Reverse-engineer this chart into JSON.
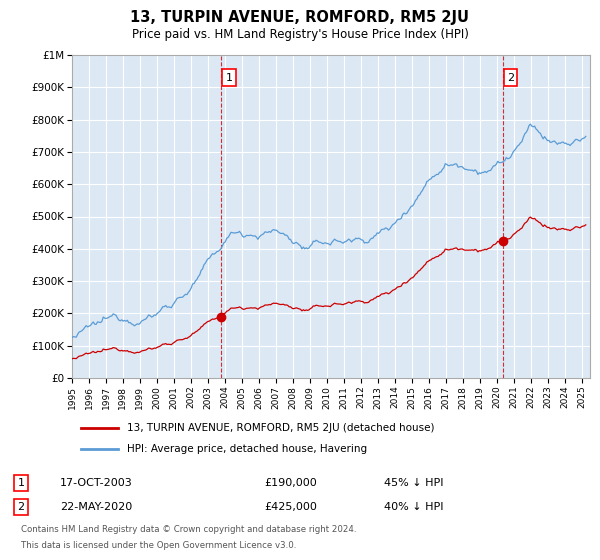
{
  "title": "13, TURPIN AVENUE, ROMFORD, RM5 2JU",
  "subtitle": "Price paid vs. HM Land Registry's House Price Index (HPI)",
  "title_fontsize": 10.5,
  "subtitle_fontsize": 8.5,
  "background_color": "#ffffff",
  "plot_bg_color": "#dce9f5",
  "grid_color": "#ffffff",
  "ylim": [
    0,
    1000000
  ],
  "xlim_start": 1995.0,
  "xlim_end": 2025.5,
  "yticks": [
    0,
    100000,
    200000,
    300000,
    400000,
    500000,
    600000,
    700000,
    800000,
    900000,
    1000000
  ],
  "ytick_labels": [
    "£0",
    "£100K",
    "£200K",
    "£300K",
    "£400K",
    "£500K",
    "£600K",
    "£700K",
    "£800K",
    "£900K",
    "£1M"
  ],
  "hpi_color": "#5b9bd5",
  "price_color": "#cc0000",
  "sale1_x": 2003.79,
  "sale1_y": 190000,
  "sale2_x": 2020.38,
  "sale2_y": 425000,
  "legend_line1": "13, TURPIN AVENUE, ROMFORD, RM5 2JU (detached house)",
  "legend_line2": "HPI: Average price, detached house, Havering",
  "annotation1_label": "1",
  "annotation2_label": "2",
  "footer1": "Contains HM Land Registry data © Crown copyright and database right 2024.",
  "footer2": "This data is licensed under the Open Government Licence v3.0.",
  "table_row1": [
    "1",
    "17-OCT-2003",
    "£190,000",
    "45% ↓ HPI"
  ],
  "table_row2": [
    "2",
    "22-MAY-2020",
    "£425,000",
    "40% ↓ HPI"
  ]
}
